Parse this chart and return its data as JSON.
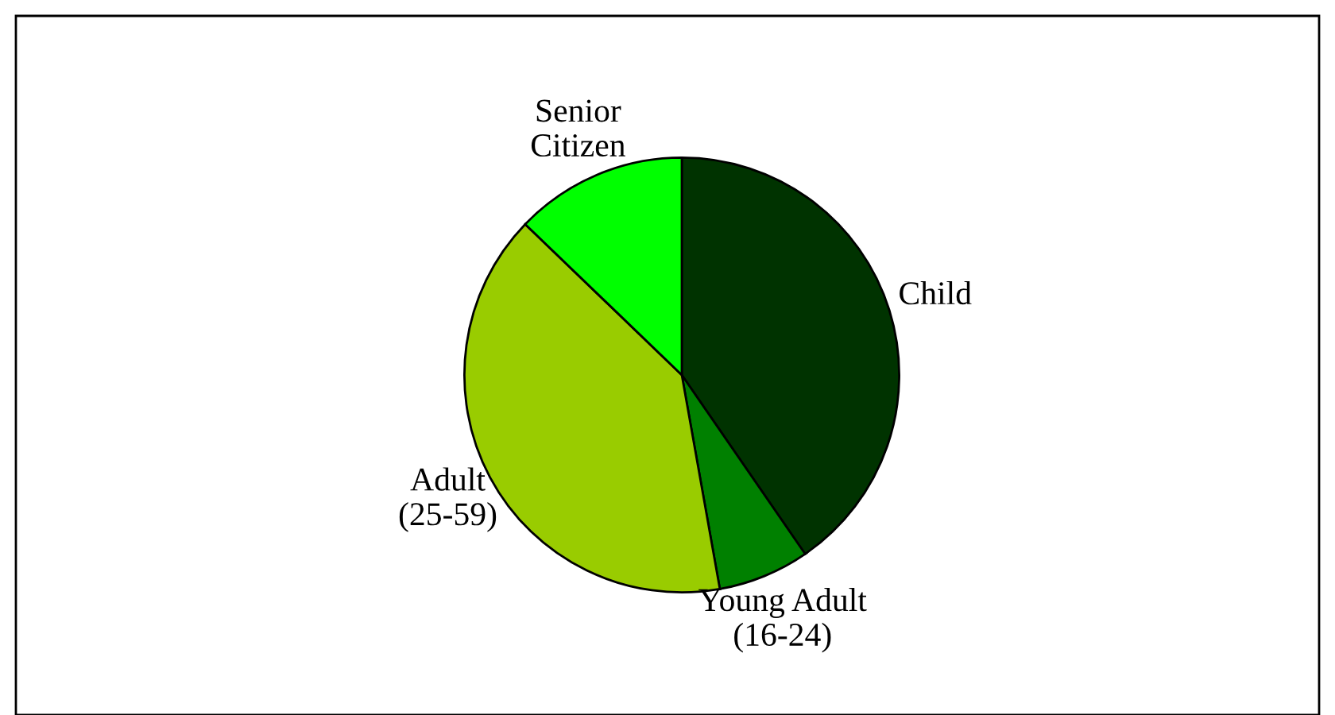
{
  "chart_data": {
    "type": "pie",
    "categories": [
      "Child",
      "Young Adult\n(16-24)",
      "Adult\n(25-59)",
      "Senior\nCitizen"
    ],
    "values": [
      40.4,
      6.8,
      40.0,
      12.8
    ],
    "colors": [
      "#003300",
      "#008000",
      "#99cc00",
      "#00ff00"
    ],
    "legend": false
  }
}
